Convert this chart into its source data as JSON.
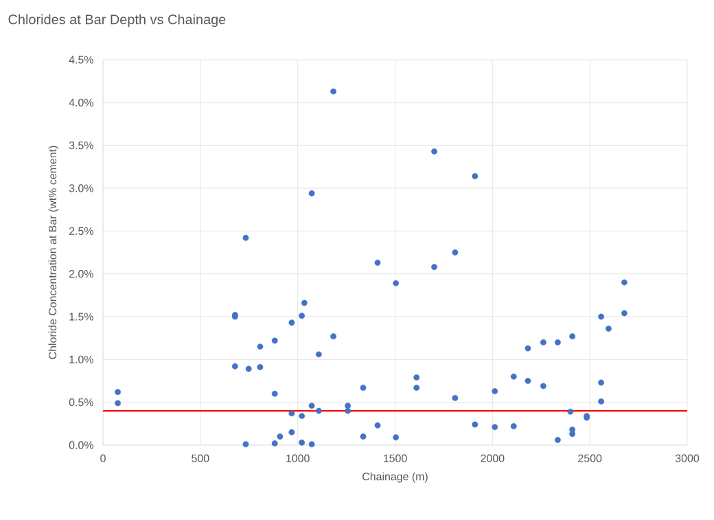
{
  "chart_data": {
    "type": "scatter",
    "title": "Chlorides at Bar Depth vs Chainage",
    "xlabel": "Chainage (m)",
    "ylabel": "Chloride Concentration at Bar (wt%  cement)",
    "x": [
      76,
      76,
      678,
      678,
      678,
      748,
      807,
      807,
      882,
      882,
      969,
      1021,
      1034,
      1183,
      1108,
      1410,
      1504,
      1336,
      1072,
      1108,
      1257,
      1257,
      969,
      1021,
      969,
      909,
      882,
      733,
      1021,
      1072,
      1336,
      1410,
      1504,
      1701,
      1610,
      1610,
      1808,
      1910,
      2012,
      2012,
      2109,
      2109,
      2182,
      2182,
      2261,
      2261,
      2335,
      2335,
      2410,
      2400,
      2410,
      2410,
      2484,
      2484,
      2558,
      2558,
      2558,
      2596,
      2677,
      2677,
      1183,
      1072,
      733,
      1701,
      1910,
      1808
    ],
    "values": [
      0.62,
      0.49,
      1.52,
      1.5,
      0.92,
      0.89,
      1.15,
      0.91,
      1.22,
      0.6,
      1.43,
      1.51,
      1.66,
      1.27,
      1.06,
      2.13,
      1.89,
      0.67,
      0.46,
      0.4,
      0.46,
      0.4,
      0.37,
      0.34,
      0.15,
      0.1,
      0.02,
      0.01,
      0.03,
      0.01,
      0.1,
      0.23,
      0.09,
      2.08,
      0.79,
      0.67,
      0.55,
      0.24,
      0.63,
      0.21,
      0.8,
      0.22,
      1.13,
      0.75,
      1.2,
      0.69,
      1.2,
      0.06,
      1.27,
      0.39,
      0.18,
      0.13,
      0.34,
      0.32,
      1.5,
      0.73,
      0.51,
      1.36,
      1.9,
      1.54,
      4.13,
      2.94,
      2.42,
      3.43,
      3.14,
      2.25
    ],
    "color": "#4472c4",
    "marker": "circle",
    "xlim": [
      0,
      3000
    ],
    "xticks": [
      0,
      500,
      1000,
      1500,
      2000,
      2500,
      3000
    ],
    "ylim": [
      0,
      4.5
    ],
    "yticks": [
      {
        "value": 0,
        "label": "0.0%"
      },
      {
        "value": 0.5,
        "label": "0.5%"
      },
      {
        "value": 1,
        "label": "1.0%"
      },
      {
        "value": 1.5,
        "label": "1.5%"
      },
      {
        "value": 2,
        "label": "2.0%"
      },
      {
        "value": 2.5,
        "label": "2.5%"
      },
      {
        "value": 3,
        "label": "3.0%"
      },
      {
        "value": 3.5,
        "label": "3.5%"
      },
      {
        "value": 4,
        "label": "4.0%"
      },
      {
        "value": 4.5,
        "label": "4.5%"
      }
    ],
    "grid": true,
    "ref_lines": [
      {
        "axis": "y",
        "value": 0.4,
        "color": "#ff0000"
      }
    ]
  }
}
